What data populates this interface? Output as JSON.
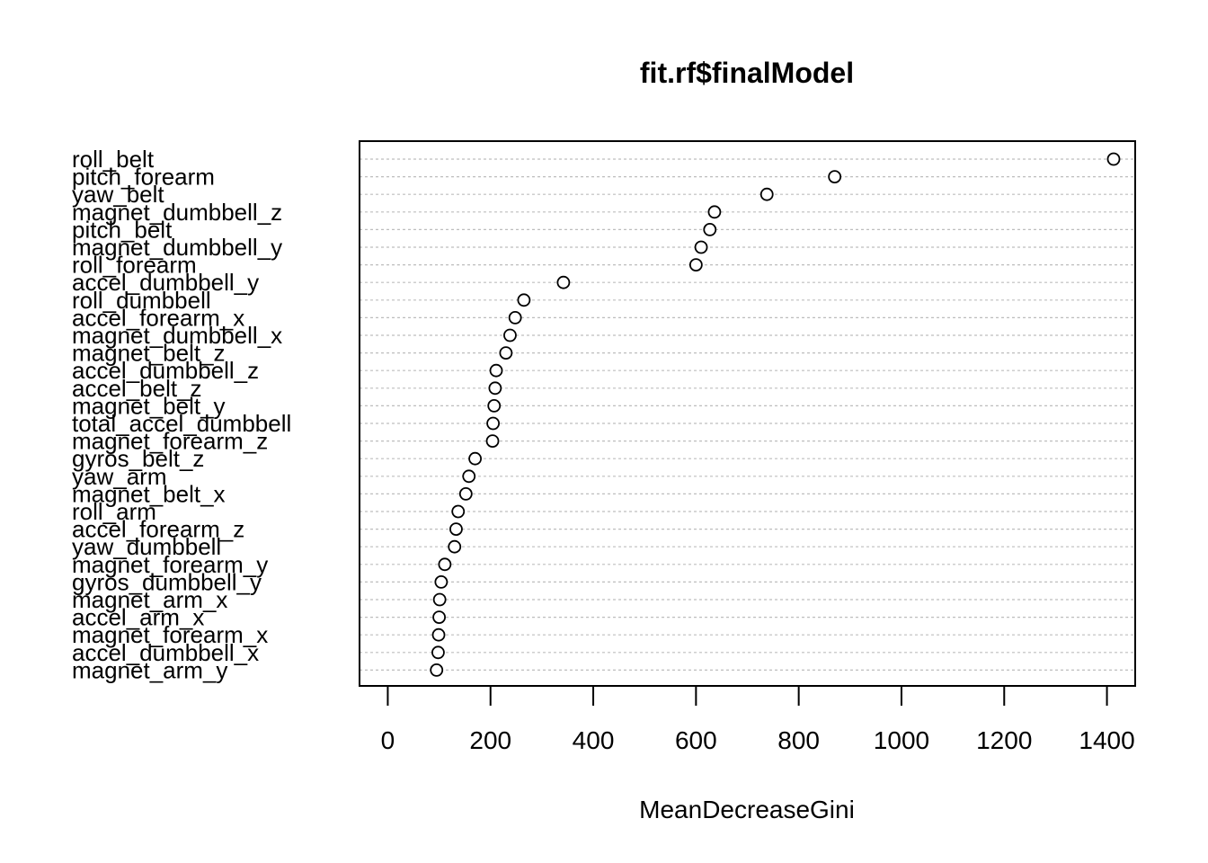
{
  "chart_data": {
    "type": "scatter",
    "title": "fit.rf$finalModel",
    "xlabel": "MeanDecreaseGini",
    "ylabel": "",
    "xlim": [
      -55,
      1455
    ],
    "xticks": [
      0,
      200,
      400,
      600,
      800,
      1000,
      1200,
      1400
    ],
    "grid": "dotted horizontal lines per variable",
    "marker": "open circle",
    "categories": [
      "roll_belt",
      "pitch_forearm",
      "yaw_belt",
      "magnet_dumbbell_z",
      "pitch_belt",
      "magnet_dumbbell_y",
      "roll_forearm",
      "accel_dumbbell_y",
      "roll_dumbbell",
      "accel_forearm_x",
      "magnet_dumbbell_x",
      "magnet_belt_z",
      "accel_dumbbell_z",
      "accel_belt_z",
      "magnet_belt_y",
      "total_accel_dumbbell",
      "magnet_forearm_z",
      "gyros_belt_z",
      "yaw_arm",
      "magnet_belt_x",
      "roll_arm",
      "accel_forearm_z",
      "yaw_dumbbell",
      "magnet_forearm_y",
      "gyros_dumbbell_y",
      "magnet_arm_x",
      "accel_arm_x",
      "magnet_forearm_x",
      "accel_dumbbell_x",
      "magnet_arm_y"
    ],
    "values": [
      1413,
      870,
      738,
      636,
      627,
      610,
      600,
      342,
      265,
      248,
      238,
      230,
      211,
      209,
      207,
      205,
      204,
      170,
      158,
      152,
      137,
      133,
      130,
      111,
      104,
      101,
      100,
      99,
      98,
      95
    ]
  }
}
